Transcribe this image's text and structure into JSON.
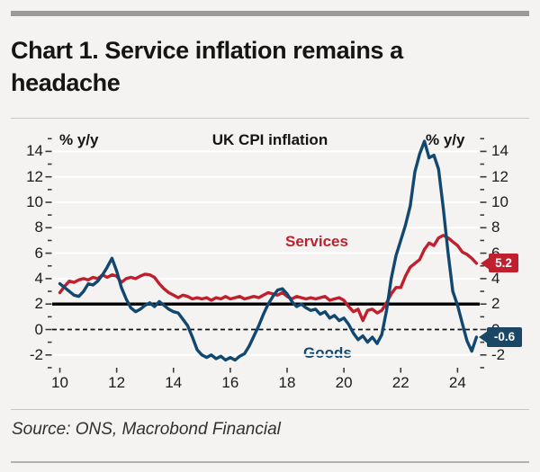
{
  "header": {
    "title": "Chart 1. Service inflation remains a headache"
  },
  "chart": {
    "title": "UK CPI inflation",
    "unit_left": "% y/y",
    "unit_right": "% y/y",
    "series_labels": {
      "services": "Services",
      "goods": "Goods"
    },
    "callouts": {
      "services": {
        "label": "5.2",
        "value": 5.2,
        "color": "#c0202e"
      },
      "goods": {
        "label": "-0.6",
        "value": -0.6,
        "color": "#1b4766"
      }
    }
  },
  "chart_data": {
    "type": "line",
    "title": "UK CPI inflation",
    "ylabel": "% y/y",
    "x_start_year": 2010.0,
    "x_step_years": 0.166667,
    "x_end_year": 2024.667,
    "xlim": [
      2009.73,
      2024.78
    ],
    "ylim": [
      -3,
      15.8
    ],
    "x_tick_years": [
      2010,
      2012,
      2014,
      2016,
      2018,
      2020,
      2022,
      2024
    ],
    "x_tick_labels": [
      "10",
      "12",
      "14",
      "16",
      "18",
      "20",
      "22",
      "24"
    ],
    "y_major_ticks": [
      -2,
      0,
      2,
      4,
      6,
      8,
      10,
      12,
      14
    ],
    "y_minor_ticks": [
      -3,
      -1,
      1,
      3,
      5,
      7,
      9,
      11,
      13,
      15
    ],
    "grid": true,
    "gridline_color": "#ffffff",
    "reference_lines": [
      {
        "value": 2,
        "style": "solid",
        "color": "#000000"
      },
      {
        "value": 0,
        "style": "dashed",
        "color": "#111111"
      }
    ],
    "series": [
      {
        "name": "Services",
        "color": "#c0202e",
        "values": [
          2.9,
          3.4,
          3.8,
          3.7,
          3.9,
          4.0,
          3.9,
          4.1,
          4.0,
          4.3,
          4.1,
          4.3,
          4.2,
          3.7,
          4.0,
          4.1,
          4.0,
          4.2,
          4.35,
          4.3,
          4.1,
          3.6,
          3.2,
          2.9,
          2.7,
          2.5,
          2.7,
          2.6,
          2.4,
          2.5,
          2.4,
          2.5,
          2.3,
          2.5,
          2.4,
          2.6,
          2.4,
          2.5,
          2.6,
          2.4,
          2.5,
          2.6,
          2.5,
          2.7,
          2.9,
          2.8,
          2.7,
          2.9,
          2.6,
          2.4,
          2.6,
          2.5,
          2.4,
          2.5,
          2.4,
          2.5,
          2.6,
          2.3,
          2.4,
          2.5,
          2.3,
          1.8,
          1.4,
          1.6,
          0.7,
          1.5,
          1.6,
          1.3,
          1.5,
          2.1,
          2.8,
          3.3,
          3.3,
          4.2,
          4.9,
          5.2,
          5.5,
          6.3,
          6.8,
          6.6,
          7.2,
          7.4,
          7.2,
          6.9,
          6.6,
          6.1,
          5.9,
          5.6,
          5.2
        ]
      },
      {
        "name": "Goods",
        "color": "#12486f",
        "values": [
          3.6,
          3.3,
          3.0,
          2.7,
          2.6,
          3.0,
          3.6,
          3.5,
          3.8,
          4.3,
          4.9,
          5.6,
          4.6,
          3.3,
          2.4,
          1.7,
          1.4,
          1.6,
          1.9,
          2.1,
          1.8,
          2.2,
          1.9,
          1.6,
          1.4,
          1.3,
          0.8,
          0.3,
          -0.6,
          -1.6,
          -2.0,
          -2.2,
          -2.0,
          -2.3,
          -2.1,
          -2.4,
          -2.2,
          -2.4,
          -2.1,
          -1.9,
          -1.3,
          -0.5,
          0.3,
          1.2,
          2.0,
          2.6,
          3.1,
          3.2,
          2.8,
          2.2,
          1.8,
          2.0,
          1.7,
          1.5,
          1.6,
          1.2,
          1.4,
          0.9,
          1.1,
          0.7,
          0.9,
          0.4,
          -0.3,
          -0.8,
          -0.5,
          -1.0,
          -0.6,
          -1.1,
          -0.4,
          1.5,
          4.0,
          5.8,
          7.0,
          8.2,
          9.7,
          12.4,
          13.8,
          14.8,
          13.5,
          13.7,
          12.6,
          9.5,
          6.0,
          3.0,
          1.9,
          0.5,
          -0.9,
          -1.7,
          -0.6
        ]
      }
    ],
    "end_labels": {
      "Services": 5.2,
      "Goods": -0.6
    },
    "legend_position": "inline-annotations"
  },
  "footer": {
    "source": "Source: ONS, Macrobond Financial"
  }
}
